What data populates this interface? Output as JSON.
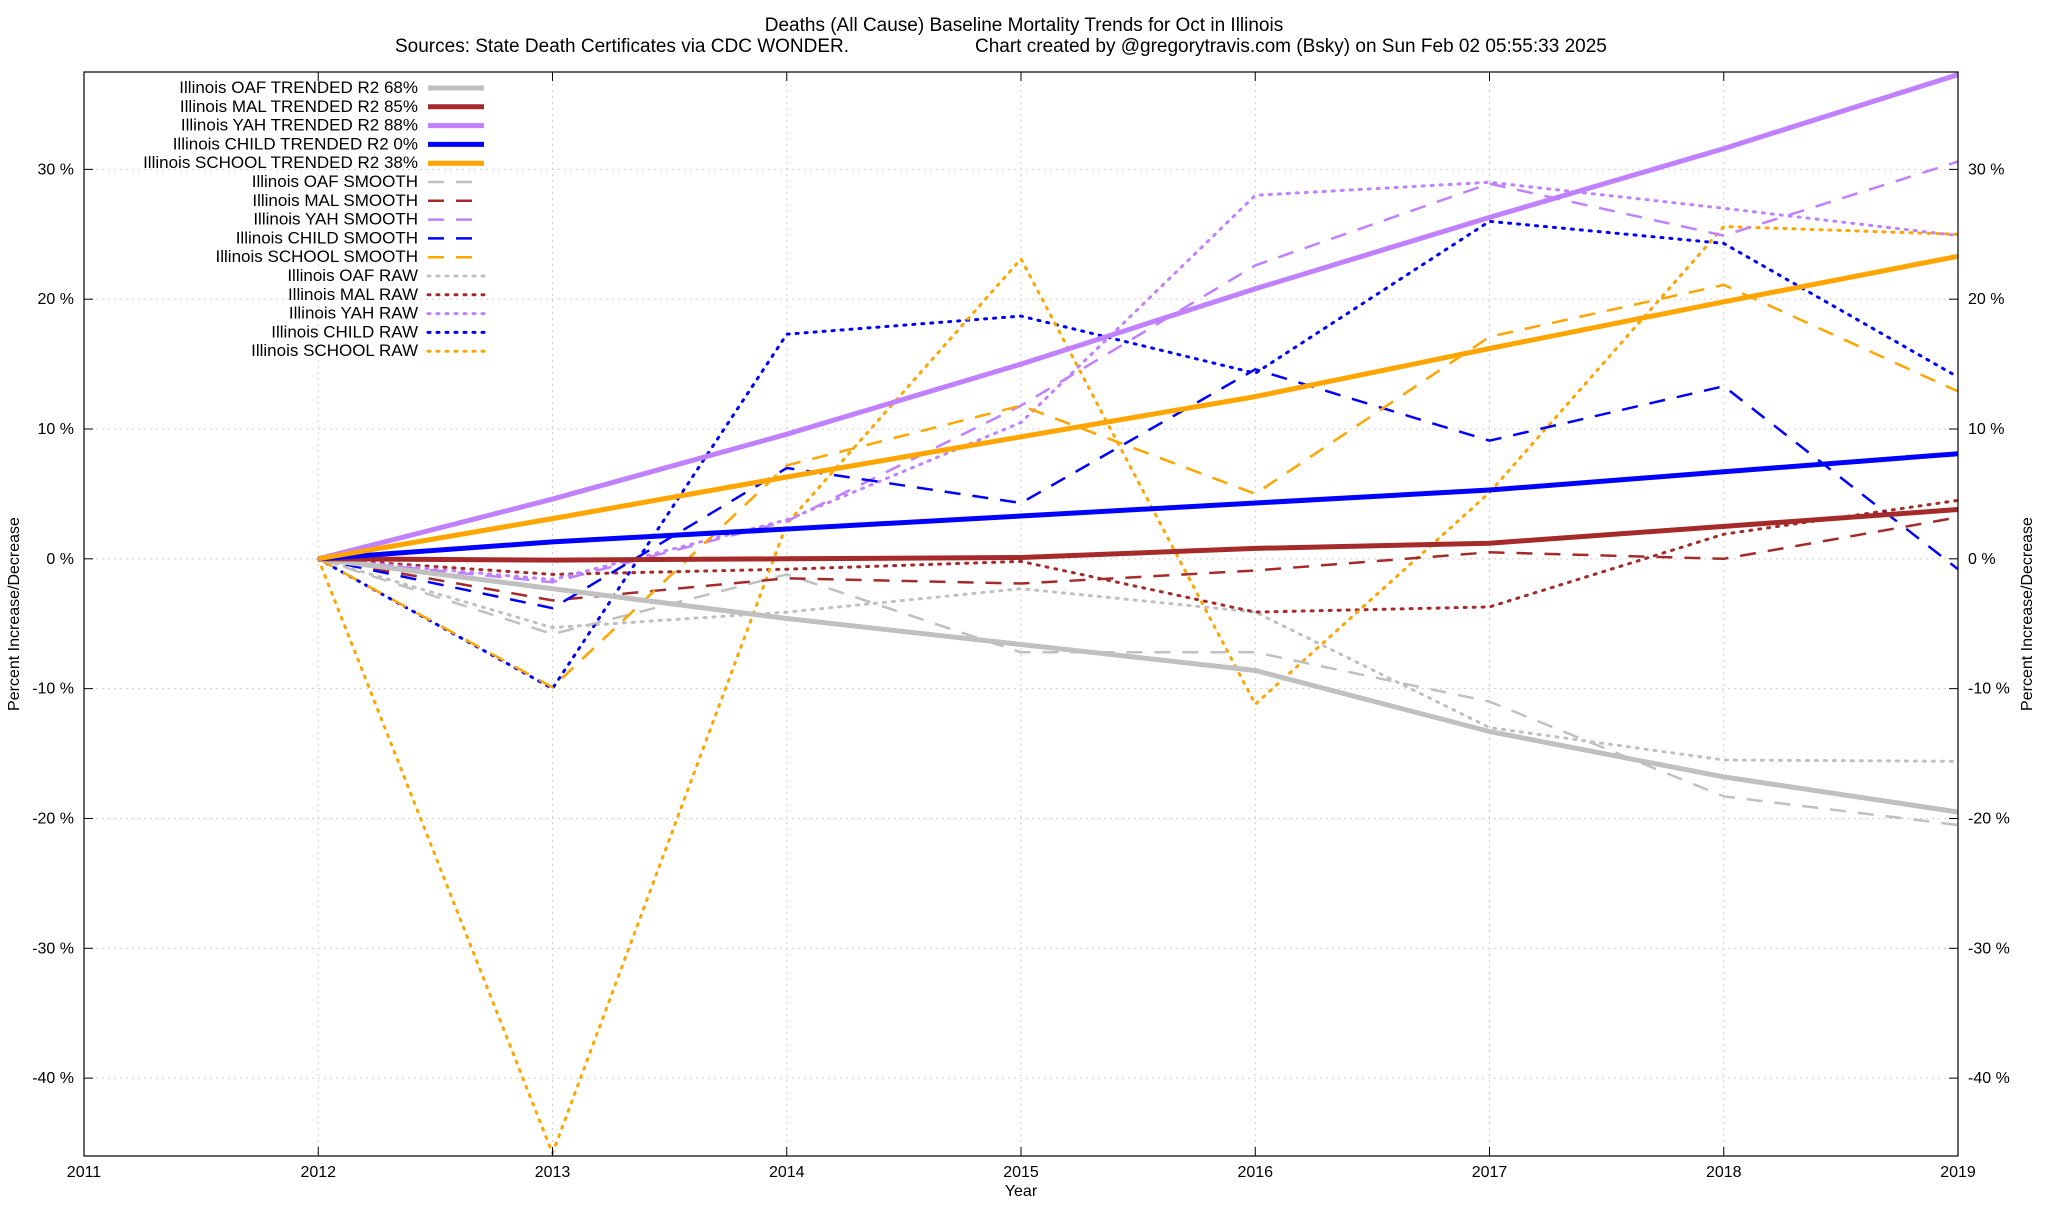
{
  "chart_data": {
    "type": "line",
    "title": "Deaths (All Cause)  Baseline Mortality Trends for Oct in Illinois",
    "subtitle_left": "Sources: State Death Certificates via CDC WONDER.",
    "subtitle_right": "Chart created by @gregorytravis.com (Bsky) on Sun Feb 02 05:55:33 2025",
    "xlabel": "Year",
    "ylabel_left": "Percent Increase/Decrease",
    "ylabel_right": "Percent Increase/Decrease",
    "xlim": [
      2011,
      2019
    ],
    "ylim": [
      -46,
      37.5
    ],
    "x_ticks": [
      2011,
      2012,
      2013,
      2014,
      2015,
      2016,
      2017,
      2018,
      2019
    ],
    "y_ticks": [
      -40,
      -30,
      -20,
      -10,
      0,
      10,
      20,
      30
    ],
    "y_tick_labels": [
      "-40 %",
      "-30 %",
      "-20 %",
      "-10 %",
      "0 %",
      "10 %",
      "20 %",
      "30 %"
    ],
    "grid": true,
    "legend_position": "top-left",
    "colors": {
      "OAF": "#c0c0c0",
      "MAL": "#a52a2a",
      "YAH": "#c080ff",
      "CHILD": "#0000ff",
      "SCHOOL": "#ffa500"
    },
    "x": [
      2012,
      2013,
      2014,
      2015,
      2016,
      2017,
      2018,
      2019
    ],
    "series": [
      {
        "name": "Illinois OAF TRENDED R2  68%",
        "group": "OAF",
        "style": "trended",
        "values": [
          0,
          -2.3,
          -4.6,
          -6.6,
          -8.6,
          -13.3,
          -16.8,
          -19.5
        ]
      },
      {
        "name": "Illinois MAL TRENDED R2  85%",
        "group": "MAL",
        "style": "trended",
        "values": [
          0,
          -0.1,
          0,
          0.1,
          0.8,
          1.2,
          2.5,
          3.8
        ]
      },
      {
        "name": "Illinois YAH TRENDED R2  88%",
        "group": "YAH",
        "style": "trended",
        "values": [
          0,
          4.6,
          9.6,
          15,
          20.8,
          26.3,
          31.6,
          37.3
        ]
      },
      {
        "name": "Illinois CHILD TRENDED R2   0%",
        "group": "CHILD",
        "style": "trended",
        "values": [
          0,
          1.3,
          2.3,
          3.3,
          4.3,
          5.3,
          6.7,
          8.1
        ]
      },
      {
        "name": "Illinois SCHOOL TRENDED R2  38%",
        "group": "SCHOOL",
        "style": "trended",
        "values": [
          0,
          3.1,
          6.3,
          9.4,
          12.5,
          16.2,
          19.8,
          23.3
        ]
      },
      {
        "name": "Illinois OAF SMOOTH",
        "group": "OAF",
        "style": "smooth",
        "values": [
          0,
          -5.8,
          -1.2,
          -7.2,
          -7.2,
          -11,
          -18.3,
          -20.5
        ]
      },
      {
        "name": "Illinois MAL SMOOTH",
        "group": "MAL",
        "style": "smooth",
        "values": [
          0,
          -3.2,
          -1.5,
          -1.9,
          -0.9,
          0.5,
          0,
          3.2
        ]
      },
      {
        "name": "Illinois YAH SMOOTH",
        "group": "YAH",
        "style": "smooth",
        "values": [
          0,
          -1.8,
          2.9,
          11.8,
          22.6,
          28.9,
          24.9,
          30.6
        ]
      },
      {
        "name": "Illinois CHILD SMOOTH",
        "group": "CHILD",
        "style": "smooth",
        "values": [
          0,
          -3.8,
          7,
          4.3,
          14.6,
          9.1,
          13.3,
          -0.8
        ]
      },
      {
        "name": "Illinois SCHOOL SMOOTH",
        "group": "SCHOOL",
        "style": "smooth",
        "values": [
          0,
          -9.9,
          7.2,
          11.8,
          5,
          17.1,
          21.1,
          12.9
        ]
      },
      {
        "name": "Illinois OAF RAW",
        "group": "OAF",
        "style": "raw",
        "values": [
          0,
          -5.3,
          -4.1,
          -2.3,
          -4.1,
          -13,
          -15.5,
          -15.6
        ]
      },
      {
        "name": "Illinois MAL RAW",
        "group": "MAL",
        "style": "raw",
        "values": [
          0,
          -1.2,
          -0.8,
          -0.2,
          -4.1,
          -3.7,
          1.9,
          4.5
        ]
      },
      {
        "name": "Illinois YAH RAW",
        "group": "YAH",
        "style": "raw",
        "values": [
          0,
          -1.6,
          3,
          10.5,
          28,
          29,
          27,
          24.9
        ]
      },
      {
        "name": "Illinois CHILD RAW",
        "group": "CHILD",
        "style": "raw",
        "values": [
          0,
          -10,
          17.3,
          18.7,
          14.3,
          26,
          24.3,
          14
        ]
      },
      {
        "name": "Illinois SCHOOL RAW",
        "group": "SCHOOL",
        "style": "raw",
        "values": [
          0,
          -45.8,
          2.7,
          23.1,
          -11.2,
          5.1,
          25.6,
          25
        ]
      }
    ]
  }
}
